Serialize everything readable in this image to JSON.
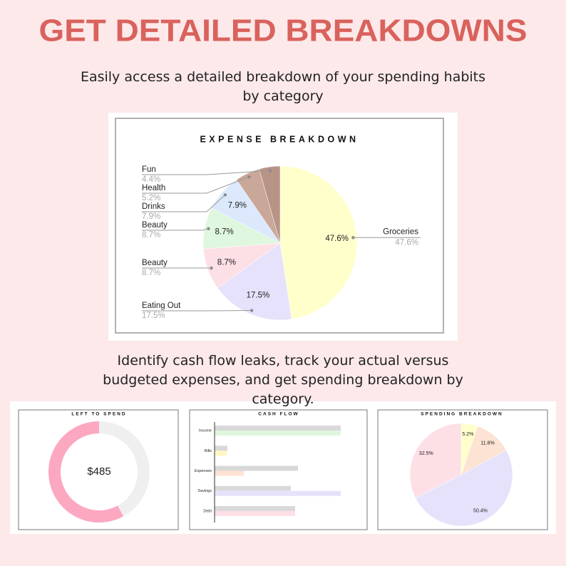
{
  "header": {
    "title": "GET DETAILED BREAKDOWNS",
    "subtitle": "Easily access a detailed breakdown of your spending habits by category"
  },
  "caption": "Identify cash flow leaks, track your actual versus budgeted expenses, and get spending breakdown by category.",
  "chart_data": [
    {
      "type": "pie",
      "title": "EXPENSE BREAKDOWN",
      "categories": [
        "Groceries",
        "Eating Out",
        "Beauty",
        "Beauty",
        "Drinks",
        "Health",
        "Fun"
      ],
      "values": [
        47.6,
        17.5,
        8.7,
        8.7,
        7.9,
        5.2,
        4.4
      ],
      "value_labels": [
        "47.6%",
        "17.5%",
        "8.7%",
        "8.7%",
        "7.9%",
        "5.2%",
        "4.4%"
      ],
      "colors": [
        "#ffffcc",
        "#e6e2fb",
        "#fde0e6",
        "#dff7df",
        "#dce9fc",
        "#c9a799",
        "#b89487"
      ]
    },
    {
      "type": "donut",
      "title": "LEFT TO SPEND",
      "center_label": "$485",
      "values": [
        42,
        58
      ],
      "colors": [
        "#efefef",
        "#fca8c1"
      ]
    },
    {
      "type": "bar",
      "title": "CASH FLOW",
      "categories": [
        "Income",
        "Bills",
        "Expenses",
        "Savings",
        "Debt"
      ],
      "series": [
        {
          "color": "#d9d9d9",
          "values": [
            177,
            18,
            117,
            107,
            113
          ]
        },
        {
          "colors": [
            "#def7dc",
            "#fff7c2",
            "#fde3d3",
            "#e6e2fb",
            "#fde0e6"
          ],
          "values": [
            177,
            17,
            41,
            177,
            113
          ]
        }
      ],
      "xlim": [
        0,
        180
      ]
    },
    {
      "type": "pie",
      "title": "SPENDING BREAKDOWN",
      "values": [
        5.2,
        11.8,
        50.4,
        32.5
      ],
      "value_labels": [
        "5.2%",
        "11.8%",
        "50.4%",
        "32.5%"
      ],
      "colors": [
        "#ffffcc",
        "#fde3d3",
        "#e6e2fb",
        "#fde0e6"
      ]
    }
  ]
}
